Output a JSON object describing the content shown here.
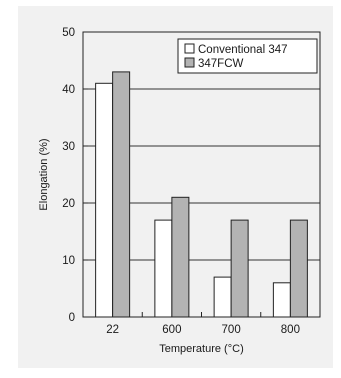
{
  "chart_data": {
    "type": "bar",
    "categories": [
      "22",
      "600",
      "700",
      "800"
    ],
    "series": [
      {
        "name": "Conventional 347",
        "values": [
          41,
          17,
          7,
          6
        ],
        "color": "#ffffff"
      },
      {
        "name": "347FCW",
        "values": [
          43,
          21,
          17,
          17
        ],
        "color": "#b3b3b3"
      }
    ],
    "xlabel": "Temperature (°C)",
    "ylabel": "Elongation (%)",
    "ylim": [
      0,
      50
    ],
    "yticks": [
      0,
      10,
      20,
      30,
      40,
      50
    ],
    "grid": true,
    "legend_position": "top-right"
  }
}
